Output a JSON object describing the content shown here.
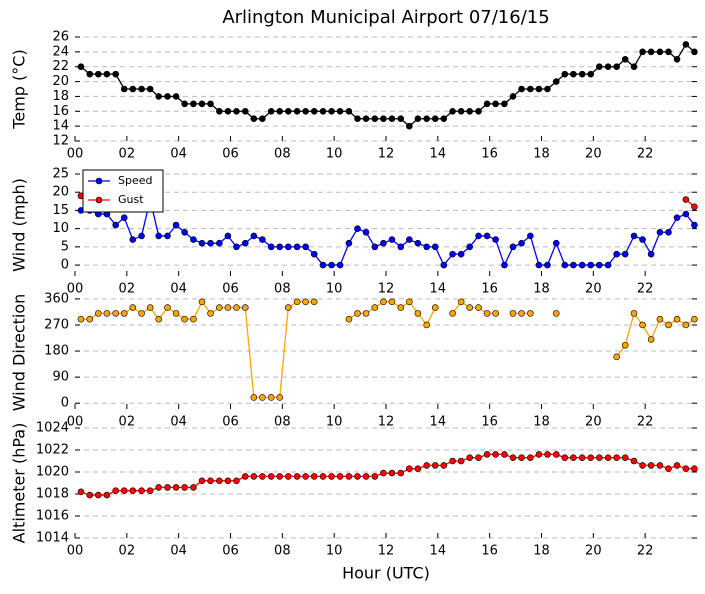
{
  "chart_data": [
    {
      "type": "line",
      "title": "Arlington Municipal Airport 07/16/15",
      "ylabel": "Temp (°C)",
      "x": [
        0.23,
        0.57,
        0.9,
        1.23,
        1.57,
        1.9,
        2.23,
        2.57,
        2.9,
        3.23,
        3.57,
        3.9,
        4.23,
        4.57,
        4.9,
        5.23,
        5.57,
        5.9,
        6.23,
        6.57,
        6.9,
        7.23,
        7.57,
        7.9,
        8.23,
        8.57,
        8.9,
        9.23,
        9.57,
        9.9,
        10.23,
        10.57,
        10.9,
        11.23,
        11.57,
        11.9,
        12.23,
        12.57,
        12.9,
        13.23,
        13.57,
        13.9,
        14.23,
        14.57,
        14.9,
        15.23,
        15.57,
        15.9,
        16.23,
        16.57,
        16.9,
        17.23,
        17.57,
        17.9,
        18.23,
        18.57,
        18.9,
        19.23,
        19.57,
        19.9,
        20.23,
        20.57,
        20.9,
        21.23,
        21.57,
        21.9,
        22.23,
        22.57,
        22.9,
        23.23,
        23.57,
        23.9
      ],
      "series": [
        {
          "name": "Temp",
          "color": "#000000",
          "values": [
            22,
            21,
            21,
            21,
            21,
            19,
            19,
            19,
            19,
            18,
            18,
            18,
            17,
            17,
            17,
            17,
            16,
            16,
            16,
            16,
            15,
            15,
            16,
            16,
            16,
            16,
            16,
            16,
            16,
            16,
            16,
            16,
            15,
            15,
            15,
            15,
            15,
            15,
            14,
            15,
            15,
            15,
            15,
            16,
            16,
            16,
            16,
            17,
            17,
            17,
            18,
            19,
            19,
            19,
            19,
            20,
            21,
            21,
            21,
            21,
            22,
            22,
            22,
            23,
            22,
            24,
            24,
            24,
            24,
            23,
            25,
            24
          ]
        }
      ],
      "xlim": [
        0,
        24
      ],
      "xticks": [
        {
          "value": 0,
          "label": "00"
        },
        {
          "value": 2,
          "label": "02"
        },
        {
          "value": 4,
          "label": "04"
        },
        {
          "value": 6,
          "label": "06"
        },
        {
          "value": 8,
          "label": "08"
        },
        {
          "value": 10,
          "label": "10"
        },
        {
          "value": 12,
          "label": "12"
        },
        {
          "value": 14,
          "label": "14"
        },
        {
          "value": 16,
          "label": "16"
        },
        {
          "value": 18,
          "label": "18"
        },
        {
          "value": 20,
          "label": "20"
        },
        {
          "value": 22,
          "label": "22"
        }
      ],
      "ylim": [
        12,
        26
      ],
      "yticks": [
        12,
        14,
        16,
        18,
        20,
        22,
        24,
        26
      ],
      "grid": true
    },
    {
      "type": "line",
      "ylabel": "Wind (mph)",
      "legend": "upper left",
      "x": [
        0.23,
        0.57,
        0.9,
        1.23,
        1.57,
        1.9,
        2.23,
        2.57,
        2.9,
        3.23,
        3.57,
        3.9,
        4.23,
        4.57,
        4.9,
        5.23,
        5.57,
        5.9,
        6.23,
        6.57,
        6.9,
        7.23,
        7.57,
        7.9,
        8.23,
        8.57,
        8.9,
        9.23,
        9.57,
        9.9,
        10.23,
        10.57,
        10.9,
        11.23,
        11.57,
        11.9,
        12.23,
        12.57,
        12.9,
        13.23,
        13.57,
        13.9,
        14.23,
        14.57,
        14.9,
        15.23,
        15.57,
        15.9,
        16.23,
        16.57,
        16.9,
        17.23,
        17.57,
        17.9,
        18.23,
        18.57,
        18.9,
        19.23,
        19.57,
        19.9,
        20.23,
        20.57,
        20.9,
        21.23,
        21.57,
        21.9,
        22.23,
        22.57,
        22.9,
        23.23,
        23.57,
        23.9
      ],
      "series": [
        {
          "name": "Speed",
          "color": "#0000ff",
          "values": [
            15,
            15,
            14,
            14,
            11,
            13,
            7,
            8,
            18,
            8,
            8,
            11,
            9,
            7,
            6,
            6,
            6,
            8,
            5,
            6,
            8,
            7,
            5,
            5,
            5,
            5,
            5,
            3,
            0,
            0,
            0,
            6,
            10,
            9,
            5,
            6,
            7,
            5,
            7,
            6,
            5,
            5,
            0,
            3,
            3,
            5,
            8,
            8,
            7,
            0,
            5,
            6,
            8,
            0,
            0,
            6,
            0,
            0,
            0,
            0,
            0,
            0,
            3,
            3,
            8,
            7,
            3,
            9,
            9,
            13,
            14,
            11
          ]
        },
        {
          "name": "Gust",
          "color": "#ff0000",
          "values": [
            19,
            null,
            null,
            null,
            null,
            null,
            null,
            null,
            null,
            null,
            null,
            null,
            null,
            null,
            null,
            null,
            null,
            null,
            null,
            null,
            null,
            null,
            null,
            null,
            null,
            null,
            null,
            null,
            null,
            null,
            null,
            null,
            null,
            null,
            null,
            null,
            null,
            null,
            null,
            null,
            null,
            null,
            null,
            null,
            null,
            null,
            null,
            null,
            null,
            null,
            null,
            null,
            null,
            null,
            null,
            null,
            null,
            null,
            null,
            null,
            null,
            null,
            null,
            null,
            null,
            null,
            null,
            null,
            null,
            null,
            18,
            16
          ]
        }
      ],
      "xlim": [
        0,
        24
      ],
      "xticks": [
        {
          "value": 0,
          "label": "00"
        },
        {
          "value": 2,
          "label": "02"
        },
        {
          "value": 4,
          "label": "04"
        },
        {
          "value": 6,
          "label": "06"
        },
        {
          "value": 8,
          "label": "08"
        },
        {
          "value": 10,
          "label": "10"
        },
        {
          "value": 12,
          "label": "12"
        },
        {
          "value": 14,
          "label": "14"
        },
        {
          "value": 16,
          "label": "16"
        },
        {
          "value": 18,
          "label": "18"
        },
        {
          "value": 20,
          "label": "20"
        },
        {
          "value": 22,
          "label": "22"
        }
      ],
      "ylim": [
        -3,
        25
      ],
      "yticks": [
        0,
        5,
        10,
        15,
        20,
        25
      ],
      "grid": true
    },
    {
      "type": "line",
      "ylabel": "Wind Direction",
      "x": [
        0.23,
        0.57,
        0.9,
        1.23,
        1.57,
        1.9,
        2.23,
        2.57,
        2.9,
        3.23,
        3.57,
        3.9,
        4.23,
        4.57,
        4.9,
        5.23,
        5.57,
        5.9,
        6.23,
        6.57,
        6.9,
        7.23,
        7.57,
        7.9,
        8.23,
        8.57,
        8.9,
        9.23,
        9.57,
        9.9,
        10.23,
        10.57,
        10.9,
        11.23,
        11.57,
        11.9,
        12.23,
        12.57,
        12.9,
        13.23,
        13.57,
        13.9,
        14.23,
        14.57,
        14.9,
        15.23,
        15.57,
        15.9,
        16.23,
        16.57,
        16.9,
        17.23,
        17.57,
        17.9,
        18.23,
        18.57,
        18.9,
        19.23,
        19.57,
        19.9,
        20.23,
        20.57,
        20.9,
        21.23,
        21.57,
        21.9,
        22.23,
        22.57,
        22.9,
        23.23,
        23.57,
        23.9
      ],
      "series": [
        {
          "name": "Direction",
          "color": "#ffa500",
          "values": [
            290,
            290,
            310,
            310,
            310,
            310,
            330,
            310,
            330,
            290,
            330,
            310,
            290,
            290,
            350,
            310,
            330,
            330,
            330,
            330,
            20,
            20,
            20,
            20,
            330,
            350,
            350,
            350,
            null,
            null,
            null,
            290,
            310,
            310,
            330,
            350,
            350,
            330,
            350,
            310,
            270,
            330,
            null,
            310,
            350,
            330,
            330,
            310,
            310,
            null,
            310,
            310,
            310,
            null,
            null,
            310,
            null,
            null,
            null,
            null,
            null,
            null,
            160,
            200,
            310,
            270,
            220,
            290,
            270,
            290,
            270,
            290
          ]
        }
      ],
      "xlim": [
        0,
        24
      ],
      "xticks": [
        {
          "value": 0,
          "label": "00"
        },
        {
          "value": 2,
          "label": "02"
        },
        {
          "value": 4,
          "label": "04"
        },
        {
          "value": 6,
          "label": "06"
        },
        {
          "value": 8,
          "label": "08"
        },
        {
          "value": 10,
          "label": "10"
        },
        {
          "value": 12,
          "label": "12"
        },
        {
          "value": 14,
          "label": "14"
        },
        {
          "value": 16,
          "label": "16"
        },
        {
          "value": 18,
          "label": "18"
        },
        {
          "value": 20,
          "label": "20"
        },
        {
          "value": 22,
          "label": "22"
        }
      ],
      "ylim": [
        -20,
        370
      ],
      "yticks": [
        0,
        90,
        180,
        270,
        360
      ],
      "grid": true
    },
    {
      "type": "line",
      "ylabel": "Altimeter (hPa)",
      "xlabel": "Hour (UTC)",
      "x": [
        0.23,
        0.57,
        0.9,
        1.23,
        1.57,
        1.9,
        2.23,
        2.57,
        2.9,
        3.23,
        3.57,
        3.9,
        4.23,
        4.57,
        4.9,
        5.23,
        5.57,
        5.9,
        6.23,
        6.57,
        6.9,
        7.23,
        7.57,
        7.9,
        8.23,
        8.57,
        8.9,
        9.23,
        9.57,
        9.9,
        10.23,
        10.57,
        10.9,
        11.23,
        11.57,
        11.9,
        12.23,
        12.57,
        12.9,
        13.23,
        13.57,
        13.9,
        14.23,
        14.57,
        14.9,
        15.23,
        15.57,
        15.9,
        16.23,
        16.57,
        16.9,
        17.23,
        17.57,
        17.9,
        18.23,
        18.57,
        18.9,
        19.23,
        19.57,
        19.9,
        20.23,
        20.57,
        20.9,
        21.23,
        21.57,
        21.9,
        22.23,
        22.57,
        22.9,
        23.23,
        23.57,
        23.9
      ],
      "series": [
        {
          "name": "Altimeter",
          "color": "#ff0000",
          "values": [
            1018.2,
            1017.9,
            1017.9,
            1017.9,
            1018.3,
            1018.3,
            1018.3,
            1018.3,
            1018.3,
            1018.6,
            1018.6,
            1018.6,
            1018.6,
            1018.6,
            1019.2,
            1019.2,
            1019.2,
            1019.2,
            1019.2,
            1019.6,
            1019.6,
            1019.6,
            1019.6,
            1019.6,
            1019.6,
            1019.6,
            1019.6,
            1019.6,
            1019.6,
            1019.6,
            1019.6,
            1019.6,
            1019.6,
            1019.6,
            1019.6,
            1019.9,
            1019.9,
            1019.9,
            1020.3,
            1020.3,
            1020.6,
            1020.6,
            1020.6,
            1021.0,
            1021.0,
            1021.3,
            1021.3,
            1021.6,
            1021.6,
            1021.6,
            1021.3,
            1021.3,
            1021.3,
            1021.6,
            1021.6,
            1021.6,
            1021.3,
            1021.3,
            1021.3,
            1021.3,
            1021.3,
            1021.3,
            1021.3,
            1021.3,
            1021.0,
            1020.6,
            1020.6,
            1020.6,
            1020.3,
            1020.6,
            1020.3,
            1020.3
          ]
        }
      ],
      "xlim": [
        0,
        24
      ],
      "xticks": [
        {
          "value": 0,
          "label": "00"
        },
        {
          "value": 2,
          "label": "02"
        },
        {
          "value": 4,
          "label": "04"
        },
        {
          "value": 6,
          "label": "06"
        },
        {
          "value": 8,
          "label": "08"
        },
        {
          "value": 10,
          "label": "10"
        },
        {
          "value": 12,
          "label": "12"
        },
        {
          "value": 14,
          "label": "14"
        },
        {
          "value": 16,
          "label": "16"
        },
        {
          "value": 18,
          "label": "18"
        },
        {
          "value": 20,
          "label": "20"
        },
        {
          "value": 22,
          "label": "22"
        }
      ],
      "ylim": [
        1014,
        1024
      ],
      "yticks": [
        1014,
        1016,
        1018,
        1020,
        1022,
        1024
      ],
      "grid": true
    }
  ]
}
